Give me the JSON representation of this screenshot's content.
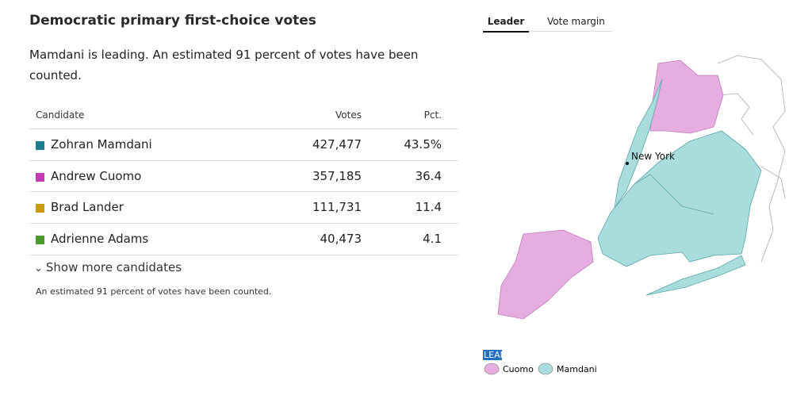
{
  "header": {
    "title": "Democratic primary first-choice votes",
    "subtitle": "Mamdani is leading. An estimated 91 percent of votes have been counted."
  },
  "table": {
    "columns": [
      "Candidate",
      "Votes",
      "Pct."
    ],
    "rows": [
      [
        "Zohran Mamdani",
        "427,477",
        "43.5%"
      ],
      [
        "Andrew Cuomo",
        "357,185",
        "36.4"
      ],
      [
        "Brad Lander",
        "111,731",
        "11.4"
      ],
      [
        "Adrienne Adams",
        "40,473",
        "4.1"
      ]
    ],
    "colors": [
      "#1a7e8c",
      "#c23ab5",
      "#c99a0e",
      "#4c9a2a"
    ]
  },
  "show_more": "Show more candidates",
  "footnote": "An estimated 91 percent of votes have been counted.",
  "tabs": [
    "Leader",
    "Vote margin"
  ],
  "map": {
    "label": "New York",
    "legend_title": "LEAD/WON",
    "legend": [
      {
        "name": "Cuomo",
        "color": "#e6aee0"
      },
      {
        "name": "Mamdani",
        "color": "#a9dcdc"
      }
    ]
  }
}
